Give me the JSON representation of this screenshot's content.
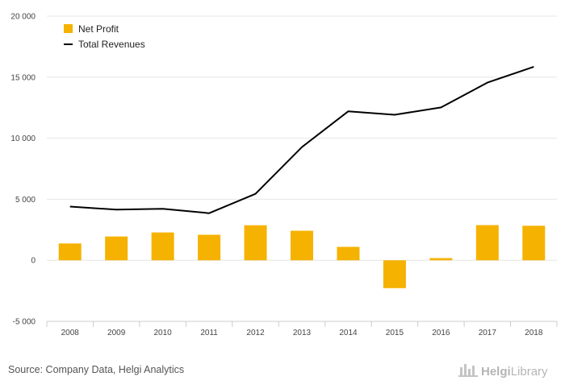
{
  "chart_data": {
    "type": "bar",
    "categories": [
      "2008",
      "2009",
      "2010",
      "2011",
      "2012",
      "2013",
      "2014",
      "2015",
      "2016",
      "2017",
      "2018"
    ],
    "series": [
      {
        "name": "Net Profit",
        "type": "bar",
        "color": "#f5b200",
        "values": [
          1380,
          1950,
          2280,
          2090,
          2870,
          2420,
          1100,
          -2280,
          180,
          2880,
          2830
        ]
      },
      {
        "name": "Total Revenues",
        "type": "line",
        "color": "#000000",
        "values": [
          4400,
          4150,
          4220,
          3860,
          5440,
          9270,
          12200,
          11920,
          12520,
          14550,
          15850
        ]
      }
    ],
    "ylim": [
      -5000,
      20000
    ],
    "yticks": [
      -5000,
      0,
      5000,
      10000,
      15000,
      20000
    ],
    "ytick_labels": [
      "-5 000",
      "0",
      "5 000",
      "10 000",
      "15 000",
      "20 000"
    ],
    "grid": true,
    "legend_position": "top-left"
  },
  "footer": {
    "source": "Source: Company Data, Helgi Analytics",
    "logo_primary": "Helgi",
    "logo_secondary": "Library"
  }
}
